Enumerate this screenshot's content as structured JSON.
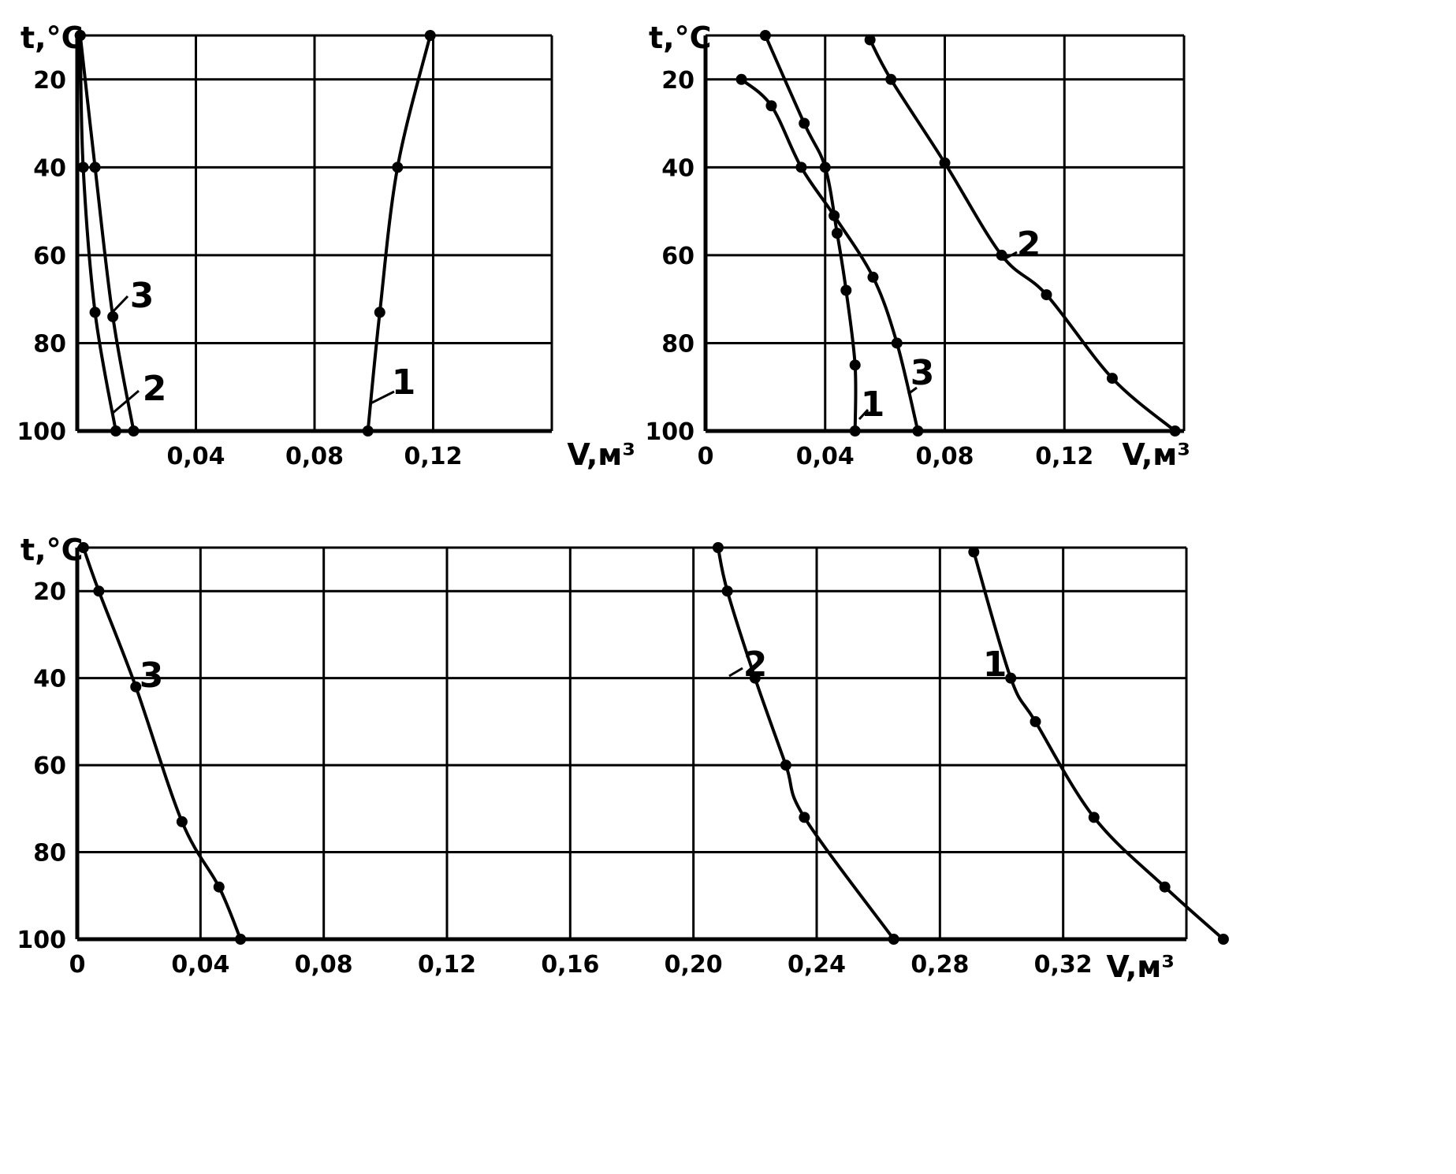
{
  "chart_data": [
    {
      "type": "line",
      "ylabel": "t,°C",
      "xlabel": "V,м³",
      "xlim": [
        0,
        0.16
      ],
      "ylim": [
        100,
        10
      ],
      "grid": true,
      "x_ticks": [
        "0,04",
        "0,08",
        "0,12"
      ],
      "y_ticks": [
        "20",
        "40",
        "60",
        "80",
        "100"
      ],
      "series": [
        {
          "name": "1",
          "points": [
            [
              0.119,
              10
            ],
            [
              0.108,
              40
            ],
            [
              0.102,
              73
            ],
            [
              0.098,
              100
            ]
          ]
        },
        {
          "name": "2",
          "points": [
            [
              0.001,
              10
            ],
            [
              0.002,
              40
            ],
            [
              0.006,
              73
            ],
            [
              0.013,
              100
            ]
          ]
        },
        {
          "name": "3",
          "points": [
            [
              0.001,
              10
            ],
            [
              0.006,
              40
            ],
            [
              0.012,
              74
            ],
            [
              0.019,
              100
            ]
          ]
        }
      ]
    },
    {
      "type": "line",
      "ylabel": "t,°C",
      "xlabel": "V,м³",
      "xlim": [
        0,
        0.16
      ],
      "ylim": [
        100,
        10
      ],
      "grid": true,
      "x_ticks": [
        "0",
        "0,04",
        "0,08",
        "0,12"
      ],
      "y_ticks": [
        "20",
        "40",
        "60",
        "80",
        "100"
      ],
      "series": [
        {
          "name": "1",
          "points": [
            [
              0.02,
              10
            ],
            [
              0.033,
              30
            ],
            [
              0.04,
              40
            ],
            [
              0.044,
              55
            ],
            [
              0.047,
              68
            ],
            [
              0.05,
              85
            ],
            [
              0.05,
              100
            ]
          ]
        },
        {
          "name": "2",
          "points": [
            [
              0.055,
              11
            ],
            [
              0.062,
              20
            ],
            [
              0.08,
              39
            ],
            [
              0.099,
              60
            ],
            [
              0.114,
              69
            ],
            [
              0.136,
              88
            ],
            [
              0.157,
              100
            ]
          ]
        },
        {
          "name": "3",
          "points": [
            [
              0.012,
              20
            ],
            [
              0.022,
              26
            ],
            [
              0.032,
              40
            ],
            [
              0.043,
              51
            ],
            [
              0.056,
              65
            ],
            [
              0.064,
              80
            ],
            [
              0.071,
              100
            ]
          ]
        }
      ]
    },
    {
      "type": "line",
      "ylabel": "t,°C",
      "xlabel": "V,м³",
      "xlim": [
        0,
        0.36
      ],
      "ylim": [
        100,
        10
      ],
      "grid": true,
      "x_ticks": [
        "0",
        "0,04",
        "0,08",
        "0,12",
        "0,16",
        "0,20",
        "0,24",
        "0,28",
        "0,32"
      ],
      "y_ticks": [
        "20",
        "40",
        "60",
        "80",
        "100"
      ],
      "series": [
        {
          "name": "1",
          "points": [
            [
              0.291,
              11
            ],
            [
              0.303,
              40
            ],
            [
              0.311,
              50
            ],
            [
              0.33,
              72
            ],
            [
              0.353,
              88
            ],
            [
              0.372,
              100
            ]
          ]
        },
        {
          "name": "2",
          "points": [
            [
              0.208,
              10
            ],
            [
              0.211,
              20
            ],
            [
              0.22,
              40
            ],
            [
              0.23,
              60
            ],
            [
              0.236,
              72
            ],
            [
              0.265,
              100
            ]
          ]
        },
        {
          "name": "3",
          "points": [
            [
              0.002,
              10
            ],
            [
              0.007,
              20
            ],
            [
              0.019,
              42
            ],
            [
              0.034,
              73
            ],
            [
              0.046,
              88
            ],
            [
              0.053,
              100
            ]
          ]
        }
      ]
    }
  ]
}
